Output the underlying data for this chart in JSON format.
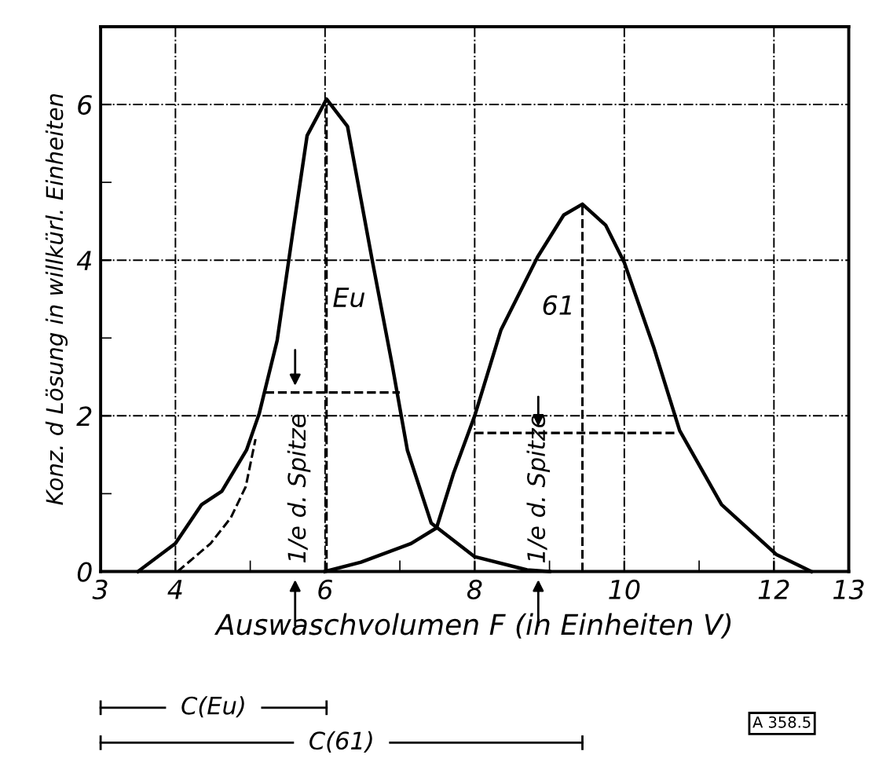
{
  "chart_data": {
    "type": "line",
    "xlabel": "Auswaschvolumen F (in Einheiten V)",
    "ylabel": "Konz. d Lösung in willkürl. Einheiten",
    "xlim": [
      3,
      13
    ],
    "ylim": [
      0,
      7
    ],
    "xticks": [
      3,
      4,
      {
        "value": 5,
        "label": null
      },
      6,
      {
        "value": 7,
        "label": null
      },
      8,
      {
        "value": 9,
        "label": null
      },
      10,
      {
        "value": 11,
        "label": null
      },
      12,
      13
    ],
    "yticks": [
      0,
      {
        "value": 1,
        "label": null
      },
      2,
      {
        "value": 3,
        "label": null
      },
      4,
      {
        "value": 5,
        "label": null
      },
      6
    ],
    "grid": true,
    "legend": false,
    "marker": "none",
    "series": [
      {
        "color": "#000000",
        "line_style": "solid",
        "x": [
          3.5,
          4.0,
          4.35,
          4.62,
          4.95,
          5.12,
          5.36,
          5.56,
          5.76,
          6.02,
          6.3,
          6.63,
          6.9,
          7.1,
          7.42,
          8.0,
          8.7,
          9.0
        ],
        "values": [
          0,
          0.36,
          0.86,
          1.03,
          1.56,
          2.03,
          2.97,
          4.3,
          5.6,
          6.07,
          5.72,
          4.0,
          2.64,
          1.56,
          0.62,
          0.19,
          0.02,
          0
        ]
      },
      {
        "color": "#000000",
        "line_style": "solid",
        "x": [
          6.0,
          6.48,
          7.15,
          7.49,
          7.72,
          8.0,
          8.35,
          8.84,
          9.19,
          9.44,
          9.75,
          10.0,
          10.39,
          10.74,
          11.3,
          12.03,
          12.5
        ],
        "values": [
          0,
          0.12,
          0.36,
          0.56,
          1.27,
          2.0,
          3.1,
          4.04,
          4.58,
          4.72,
          4.45,
          3.97,
          2.89,
          1.81,
          0.86,
          0.22,
          0
        ]
      },
      {
        "color": "#000000",
        "line_style": "dashed",
        "x": [
          4.03,
          4.47,
          4.74,
          4.94,
          5.07
        ],
        "values": [
          0,
          0.36,
          0.69,
          1.09,
          1.7
        ]
      },
      {
        "color": "#000000",
        "line_style": "dashed",
        "x": [
          6.02,
          6.02
        ],
        "values": [
          0,
          6.07
        ]
      },
      {
        "color": "#000000",
        "line_style": "dashed",
        "x": [
          9.44,
          9.44
        ],
        "values": [
          0,
          4.72
        ]
      },
      {
        "color": "#000000",
        "line_style": "dashed",
        "x": [
          5.2,
          7.0
        ],
        "values": [
          2.3,
          2.3
        ]
      },
      {
        "color": "#000000",
        "line_style": "dashed",
        "x": [
          8.0,
          10.7
        ],
        "values": [
          1.78,
          1.78
        ]
      }
    ],
    "annotations": [
      "Eu",
      "61",
      "1/e d. Spitze",
      "1/e d. Spitze",
      "C(Eu)",
      "C(61)",
      "A 358.5"
    ]
  }
}
